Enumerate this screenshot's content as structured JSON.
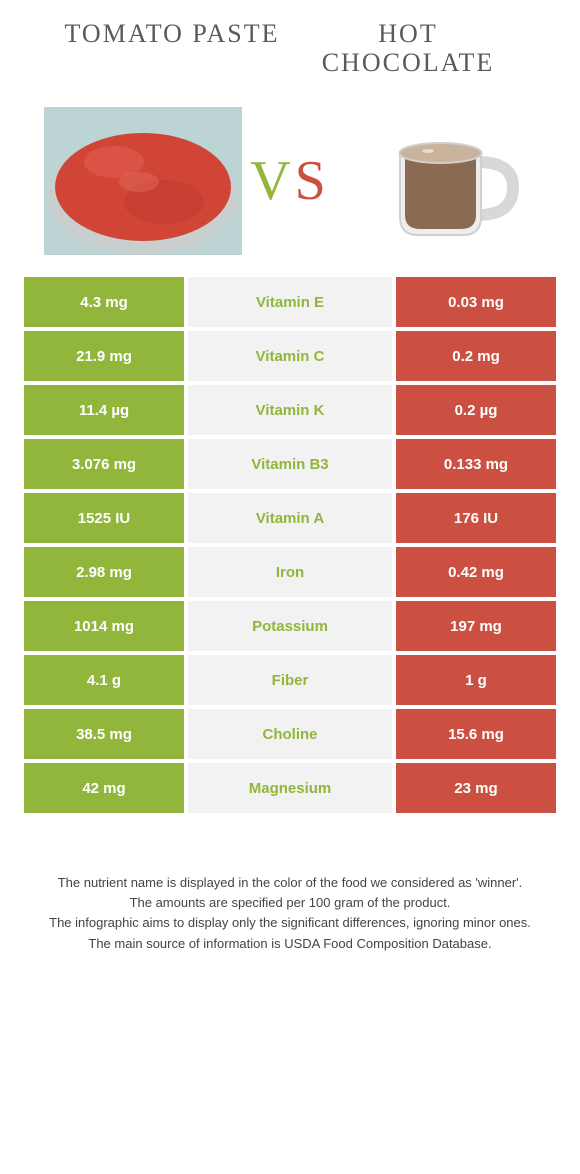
{
  "food_left": {
    "name": "TOMATO PASTE",
    "color": "#92b53c",
    "image_bg": "#d24a3a"
  },
  "food_right": {
    "name": "HOT CHOCOLATE",
    "color": "#cb5041",
    "image_bg": "#f5f5f5"
  },
  "vs_label": "VS",
  "nutrients": [
    {
      "name": "Vitamin E",
      "left": "4.3 mg",
      "right": "0.03 mg",
      "winner": "left"
    },
    {
      "name": "Vitamin C",
      "left": "21.9 mg",
      "right": "0.2 mg",
      "winner": "left"
    },
    {
      "name": "Vitamin K",
      "left": "11.4 µg",
      "right": "0.2 µg",
      "winner": "left"
    },
    {
      "name": "Vitamin B3",
      "left": "3.076 mg",
      "right": "0.133 mg",
      "winner": "left"
    },
    {
      "name": "Vitamin A",
      "left": "1525 IU",
      "right": "176 IU",
      "winner": "left"
    },
    {
      "name": "Iron",
      "left": "2.98 mg",
      "right": "0.42 mg",
      "winner": "left"
    },
    {
      "name": "Potassium",
      "left": "1014 mg",
      "right": "197 mg",
      "winner": "left"
    },
    {
      "name": "Fiber",
      "left": "4.1 g",
      "right": "1 g",
      "winner": "left"
    },
    {
      "name": "Choline",
      "left": "38.5 mg",
      "right": "15.6 mg",
      "winner": "left"
    },
    {
      "name": "Magnesium",
      "left": "42 mg",
      "right": "23 mg",
      "winner": "left"
    }
  ],
  "footnotes": [
    "The nutrient name is displayed in the color of the food we considered as 'winner'.",
    "The amounts are specified per 100 gram of the product.",
    "The infographic aims to display only the significant differences, ignoring minor ones.",
    "The main source of information is USDA Food Composition Database."
  ]
}
